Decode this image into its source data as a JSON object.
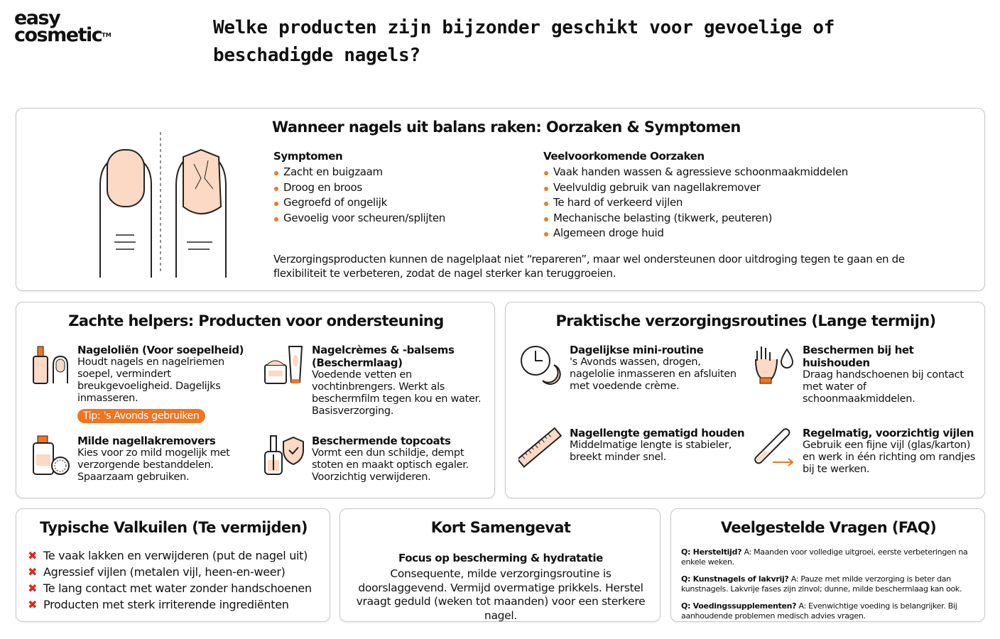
{
  "brand": {
    "logo_line1": "easy",
    "logo_line2": "cosmetic",
    "tm": "TM"
  },
  "title": "Welke producten zijn bijzonder geschikt voor gevoelige of beschadigde nagels?",
  "colors": {
    "accent": "#f27420",
    "cross": "#e0261b",
    "border": "#c9c9c9"
  },
  "causes": {
    "heading": "Wanneer nagels uit balans raken: Oorzaken & Symptomen",
    "symptoms_title": "Symptomen",
    "symptoms": [
      "Zacht en buigzaam",
      "Droog en broos",
      "Gegroefd of ongelijk",
      "Gevoelig voor scheuren/splijten"
    ],
    "reasons_title": "Veelvoorkomende Oorzaken",
    "reasons": [
      "Vaak handen wassen & agressieve schoonmaakmiddelen",
      "Veelvuldig gebruik van nagellakremover",
      "Te hard of verkeerd vijlen",
      "Mechanische belasting (tikwerk, peuteren)",
      "Algemeen droge huid"
    ],
    "note": "Verzorgingsproducten kunnen de nagelplaat niet “repareren”, maar wel ondersteunen door uitdroging tegen te gaan en de flexibiliteit te verbeteren, zodat de nagel sterker kan teruggroeien."
  },
  "products": {
    "heading": "Zachte helpers: Producten voor ondersteuning",
    "items": [
      {
        "icon": "oil-dropper-icon",
        "title": "Nageloliën (Voor soepelheid)",
        "text": "Houdt nagels en nagelriemen soepel, vermindert breukgevoeligheid. Dagelijks inmasseren.",
        "tip": "Tip: 's Avonds gebruiken"
      },
      {
        "icon": "cream-jar-tube-icon",
        "title": "Nagelcrèmes & -balsems (Beschermlaag)",
        "text": "Voedende vetten en vochtinbrengers. Werkt als beschermfilm tegen kou en water. Basisverzorging."
      },
      {
        "icon": "remover-bottle-icon",
        "title": "Milde nagellakremovers",
        "text": "Kies voor zo mild mogelijk met verzorgende bestanddelen. Spaarzaam gebruiken."
      },
      {
        "icon": "topcoat-shield-icon",
        "title": "Beschermende topcoats",
        "text": "Vormt een dun schildje, dempt stoten en maakt optisch egaler. Voorzichtig verwijderen."
      }
    ]
  },
  "routines": {
    "heading": "Praktische verzorgingsroutines (Lange termijn)",
    "items": [
      {
        "icon": "clock-moon-icon",
        "title": "Dagelijkse mini-routine",
        "text": "'s Avonds wassen, drogen, nagelolie inmasseren en afsluiten met voedende crème."
      },
      {
        "icon": "glove-drop-icon",
        "title": "Beschermen bij het huishouden",
        "text": "Draag handschoenen bij contact met water of schoonmaakmiddelen."
      },
      {
        "icon": "ruler-icon",
        "title": "Nagellengte gematigd houden",
        "text": "Middelmatige lengte is stabieler, breekt minder snel."
      },
      {
        "icon": "nail-file-icon",
        "title": "Regelmatig, voorzichtig vijlen",
        "text": "Gebruik een fijne vijl (glas/karton) en werk in één richting om randjes bij te werken."
      }
    ]
  },
  "pitfalls": {
    "heading": "Typische Valkuilen (Te vermijden)",
    "items": [
      "Te vaak lakken en verwijderen (put de nagel uit)",
      "Agressief vijlen (metalen vijl, heen-en-weer)",
      "Te lang contact met water zonder handschoenen",
      "Producten met sterk irriterende ingrediënten"
    ]
  },
  "summary": {
    "heading": "Kort Samengevat",
    "subtitle": "Focus op bescherming & hydratatie",
    "text": "Consequente, milde verzorgingsroutine is doorslaggevend. Vermijd overmatige prikkels. Herstel vraagt geduld (weken tot maanden) voor een sterkere nagel."
  },
  "faq": {
    "heading": "Veelgestelde Vragen (FAQ)",
    "items": [
      {
        "q": "Q: Hersteltijd?",
        "a": "A: Maanden voor volledige uitgroei, eerste verbeteringen na enkele weken."
      },
      {
        "q": "Q: Kunstnagels of lakvrij?",
        "a": "A: Pauze met milde verzorging is beter dan kunstnagels. Lakvrije fases zijn zinvol; dunne, milde beschermlaag kan ook."
      },
      {
        "q": "Q: Voedingssupplementen?",
        "a": "A: Evenwichtige voeding is belangrijker. Bij aanhoudende problemen medisch advies vragen."
      }
    ]
  }
}
